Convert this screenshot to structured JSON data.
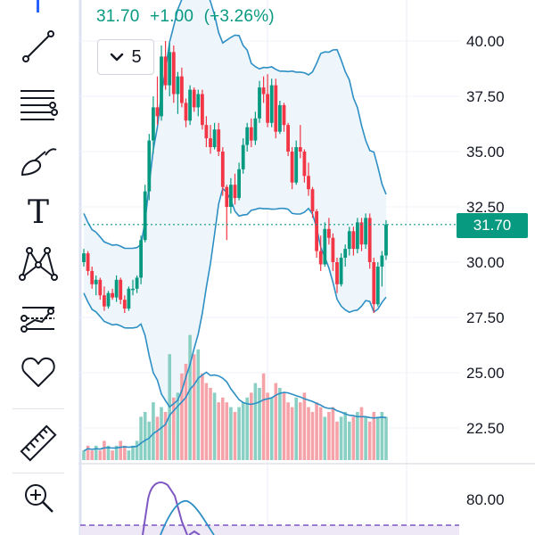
{
  "header": {
    "last": "31.70",
    "change": "+1.00",
    "change_pct": "(+3.26%)"
  },
  "interval": {
    "label": "5",
    "icon": "chevron-down-icon"
  },
  "price_axis": {
    "ticks": [
      "40.00",
      "37.50",
      "35.00",
      "32.50",
      "30.00",
      "27.50",
      "25.00",
      "22.50"
    ],
    "current_price_label": "31.70"
  },
  "indicator_axis": {
    "ticks": [
      "80.00"
    ]
  },
  "toolbar": {
    "tools": [
      {
        "name": "trend-line-tool",
        "icon": "trend-line-icon"
      },
      {
        "name": "fib-retracement-tool",
        "icon": "fib-lines-icon"
      },
      {
        "name": "brush-tool",
        "icon": "brush-icon"
      },
      {
        "name": "text-tool",
        "icon": "text-icon"
      },
      {
        "name": "pattern-tool",
        "icon": "pattern-icon"
      },
      {
        "name": "forecast-tool",
        "icon": "forecast-icon"
      },
      {
        "name": "favorites-tool",
        "icon": "heart-icon"
      },
      {
        "name": "measure-tool",
        "icon": "ruler-icon"
      },
      {
        "name": "zoom-tool",
        "icon": "zoom-in-icon"
      }
    ]
  },
  "colors": {
    "up": "#089981",
    "down": "#f23645",
    "up_volume": "#89cfc3",
    "down_volume": "#f5a3a9",
    "band": "#2d8fc4",
    "band_fill": "#eef6fc",
    "tool": "#131722",
    "indicator": "#7e57c2"
  },
  "chart_data": {
    "type": "candlestick",
    "ylim": [
      20.5,
      41.5
    ],
    "last_price": 31.7,
    "candles": [
      [
        30.0,
        30.6,
        29.8,
        30.4
      ],
      [
        30.4,
        30.5,
        29.4,
        29.6
      ],
      [
        29.6,
        29.8,
        28.8,
        29.0
      ],
      [
        29.0,
        29.4,
        28.5,
        29.2
      ],
      [
        29.2,
        29.3,
        28.3,
        28.5
      ],
      [
        28.5,
        28.9,
        27.8,
        28.0
      ],
      [
        28.0,
        28.7,
        27.9,
        28.6
      ],
      [
        28.6,
        28.8,
        28.3,
        28.4
      ],
      [
        28.4,
        29.4,
        28.2,
        29.2
      ],
      [
        29.2,
        29.3,
        28.1,
        28.3
      ],
      [
        28.3,
        28.5,
        27.7,
        27.9
      ],
      [
        27.9,
        28.9,
        27.8,
        28.8
      ],
      [
        28.8,
        29.2,
        28.5,
        28.8
      ],
      [
        28.8,
        29.4,
        28.6,
        29.3
      ],
      [
        29.3,
        31.2,
        29.0,
        31.0
      ],
      [
        31.0,
        33.5,
        30.9,
        33.2
      ],
      [
        33.2,
        35.8,
        32.8,
        35.5
      ],
      [
        35.5,
        37.5,
        34.9,
        37.0
      ],
      [
        37.0,
        38.4,
        36.2,
        36.6
      ],
      [
        36.6,
        39.8,
        36.4,
        39.3
      ],
      [
        39.3,
        40.0,
        37.8,
        38.0
      ],
      [
        38.0,
        39.9,
        37.5,
        39.5
      ],
      [
        39.5,
        39.8,
        37.2,
        37.6
      ],
      [
        37.6,
        38.6,
        36.7,
        38.4
      ],
      [
        38.4,
        38.8,
        37.0,
        37.2
      ],
      [
        37.2,
        37.4,
        36.1,
        36.4
      ],
      [
        36.4,
        38.0,
        36.2,
        37.8
      ],
      [
        37.8,
        37.9,
        36.8,
        37.0
      ],
      [
        37.0,
        37.8,
        36.6,
        37.6
      ],
      [
        37.6,
        37.8,
        36.0,
        36.2
      ],
      [
        36.2,
        36.6,
        35.2,
        35.6
      ],
      [
        35.6,
        36.2,
        34.9,
        35.2
      ],
      [
        35.2,
        36.3,
        35.1,
        36.0
      ],
      [
        36.0,
        36.3,
        34.8,
        35.0
      ],
      [
        35.0,
        35.2,
        33.0,
        33.4
      ],
      [
        33.4,
        33.5,
        31.0,
        32.5
      ],
      [
        32.5,
        33.8,
        32.2,
        33.5
      ],
      [
        33.5,
        34.0,
        32.6,
        32.9
      ],
      [
        32.9,
        34.5,
        32.8,
        34.2
      ],
      [
        34.2,
        35.6,
        34.0,
        35.3
      ],
      [
        35.3,
        36.3,
        35.0,
        36.1
      ],
      [
        36.1,
        36.5,
        35.2,
        35.5
      ],
      [
        35.5,
        36.8,
        35.3,
        36.5
      ],
      [
        36.5,
        38.2,
        36.3,
        37.9
      ],
      [
        37.9,
        38.4,
        37.2,
        37.6
      ],
      [
        37.6,
        38.5,
        36.1,
        36.3
      ],
      [
        36.3,
        38.3,
        36.1,
        38.0
      ],
      [
        38.0,
        38.3,
        35.6,
        35.9
      ],
      [
        35.9,
        37.3,
        35.8,
        37.1
      ],
      [
        37.1,
        37.2,
        35.9,
        36.2
      ],
      [
        36.2,
        36.3,
        34.8,
        35.0
      ],
      [
        35.0,
        35.2,
        33.3,
        33.6
      ],
      [
        33.6,
        35.5,
        33.5,
        35.2
      ],
      [
        35.2,
        36.2,
        34.7,
        35.0
      ],
      [
        35.0,
        35.1,
        33.6,
        33.9
      ],
      [
        33.9,
        34.5,
        33.0,
        33.3
      ],
      [
        33.3,
        33.4,
        32.0,
        32.3
      ],
      [
        32.3,
        32.4,
        30.2,
        30.5
      ],
      [
        30.5,
        31.2,
        29.6,
        29.9
      ],
      [
        29.9,
        31.8,
        29.8,
        31.5
      ],
      [
        31.5,
        32.0,
        30.8,
        31.1
      ],
      [
        31.1,
        31.3,
        29.6,
        30.0
      ],
      [
        30.0,
        30.2,
        28.6,
        29.0
      ],
      [
        29.0,
        30.4,
        28.9,
        30.2
      ],
      [
        30.2,
        30.8,
        29.8,
        30.6
      ],
      [
        30.6,
        31.6,
        30.3,
        31.4
      ],
      [
        31.4,
        31.6,
        30.3,
        30.6
      ],
      [
        30.6,
        32.0,
        30.4,
        31.8
      ],
      [
        31.8,
        32.0,
        30.5,
        30.8
      ],
      [
        30.8,
        32.2,
        30.6,
        32.0
      ],
      [
        32.0,
        32.2,
        29.7,
        30.0
      ],
      [
        30.0,
        30.2,
        27.7,
        28.1
      ],
      [
        28.1,
        30.0,
        28.0,
        29.8
      ],
      [
        29.8,
        30.5,
        28.9,
        30.3
      ],
      [
        30.3,
        31.9,
        30.1,
        31.7
      ]
    ],
    "volume": [
      2,
      3,
      2,
      3,
      2,
      4,
      3,
      2,
      3,
      4,
      3,
      2,
      3,
      4,
      9,
      10,
      8,
      12,
      9,
      11,
      10,
      22,
      13,
      14,
      18,
      20,
      26,
      22,
      23,
      18,
      16,
      15,
      14,
      12,
      13,
      12,
      11,
      10,
      11,
      12,
      13,
      14,
      16,
      15,
      18,
      14,
      13,
      16,
      15,
      14,
      12,
      11,
      13,
      12,
      14,
      11,
      10,
      12,
      11,
      9,
      10,
      11,
      8,
      9,
      10,
      8,
      9,
      10,
      11,
      9,
      8,
      10,
      9,
      10,
      9
    ]
  }
}
